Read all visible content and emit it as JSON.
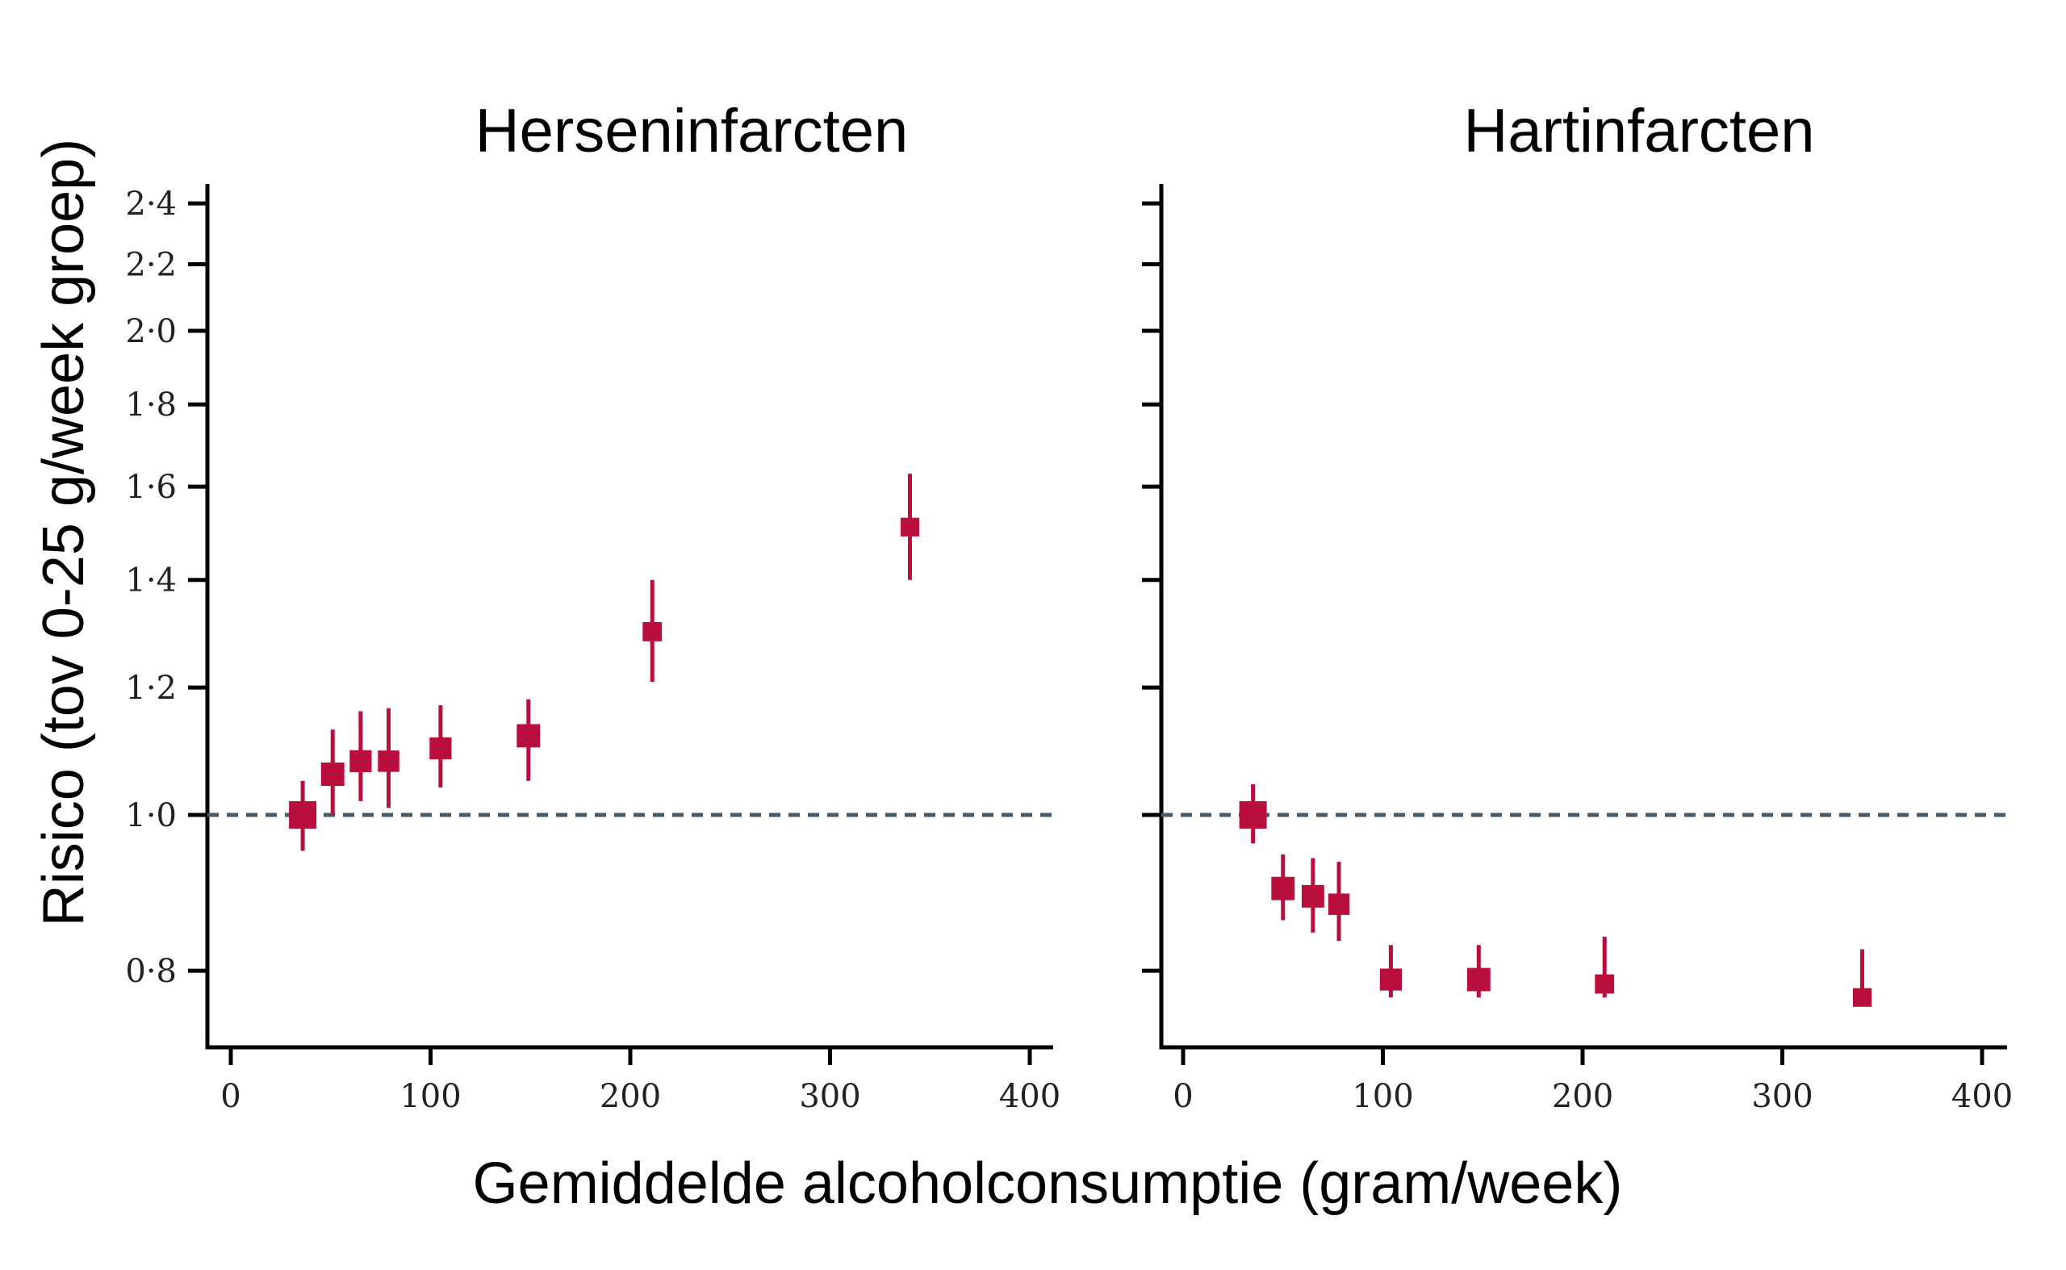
{
  "chart_data": {
    "type": "scatter",
    "y_label": "Risico (tov 0-25 g/week groep)",
    "x_label": "Gemiddelde alcoholconsumptie (gram/week)",
    "y_scale": "log",
    "y_ticks": [
      0.8,
      1.0,
      1.2,
      1.4,
      1.6,
      1.8,
      2.0,
      2.2,
      2.4
    ],
    "y_tick_labels": [
      "0·8",
      "1·0",
      "1·2",
      "1·4",
      "1·6",
      "1·8",
      "2·0",
      "2·2",
      "2·4"
    ],
    "ylim": [
      0.76,
      2.45
    ],
    "x_ticks": [
      0,
      100,
      200,
      300,
      400
    ],
    "x_tick_labels": [
      "0",
      "100",
      "200",
      "300",
      "400"
    ],
    "xlim": [
      -10,
      410
    ],
    "reference_line": 1.0,
    "grid": false,
    "marker_color": "#b80f3d",
    "reference_line_color": "#4a5a66",
    "panels": [
      {
        "title": "Herseninfarcten",
        "show_y_tick_labels": true,
        "points": [
          {
            "x": 36,
            "y": 1.0,
            "lo": 0.95,
            "hi": 1.05,
            "size": 1.0
          },
          {
            "x": 51,
            "y": 1.06,
            "lo": 1.0,
            "hi": 1.13,
            "size": 0.85
          },
          {
            "x": 65,
            "y": 1.08,
            "lo": 1.02,
            "hi": 1.16,
            "size": 0.8
          },
          {
            "x": 79,
            "y": 1.08,
            "lo": 1.01,
            "hi": 1.165,
            "size": 0.78
          },
          {
            "x": 105,
            "y": 1.1,
            "lo": 1.04,
            "hi": 1.17,
            "size": 0.8
          },
          {
            "x": 149,
            "y": 1.12,
            "lo": 1.05,
            "hi": 1.18,
            "size": 0.85
          },
          {
            "x": 211,
            "y": 1.3,
            "lo": 1.21,
            "hi": 1.4,
            "size": 0.7
          },
          {
            "x": 340,
            "y": 1.51,
            "lo": 1.4,
            "hi": 1.63,
            "size": 0.68
          }
        ]
      },
      {
        "title": "Hartinfarcten",
        "show_y_tick_labels": false,
        "points": [
          {
            "x": 35,
            "y": 1.0,
            "lo": 0.96,
            "hi": 1.045,
            "size": 1.0
          },
          {
            "x": 50,
            "y": 0.9,
            "lo": 0.86,
            "hi": 0.945,
            "size": 0.85
          },
          {
            "x": 65,
            "y": 0.89,
            "lo": 0.845,
            "hi": 0.94,
            "size": 0.82
          },
          {
            "x": 78,
            "y": 0.88,
            "lo": 0.835,
            "hi": 0.935,
            "size": 0.78
          },
          {
            "x": 104,
            "y": 0.79,
            "lo": 0.77,
            "hi": 0.83,
            "size": 0.8
          },
          {
            "x": 148,
            "y": 0.79,
            "lo": 0.77,
            "hi": 0.83,
            "size": 0.85
          },
          {
            "x": 211,
            "y": 0.785,
            "lo": 0.77,
            "hi": 0.84,
            "size": 0.7
          },
          {
            "x": 340,
            "y": 0.77,
            "lo": 0.765,
            "hi": 0.825,
            "size": 0.68
          }
        ]
      }
    ]
  }
}
